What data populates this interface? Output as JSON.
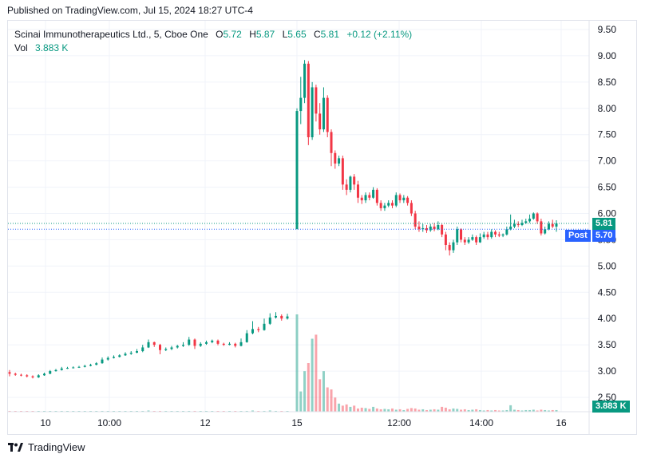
{
  "header": {
    "published": "Published on TradingView.com, Jul 15, 2024 18:27 UTC-4"
  },
  "legend": {
    "symbol": "Scinai Immunotherapeutics Ltd., 5, Cboe One",
    "o_label": "O",
    "o_value": "5.72",
    "h_label": "H",
    "h_value": "5.87",
    "l_label": "L",
    "l_value": "5.65",
    "c_label": "C",
    "c_value": "5.81",
    "change": "+0.12 (+2.11%)",
    "vol_label": "Vol",
    "vol_value": "3.883 K"
  },
  "tags": {
    "last_price": "5.81",
    "post_label": "Post",
    "post_price": "5.70",
    "volume": "3.883 K"
  },
  "footer": {
    "brand": "TradingView"
  },
  "colors": {
    "up": "#089981",
    "down": "#f23645",
    "post": "#2962ff",
    "grid": "#f0f3fa"
  },
  "chart_data": {
    "type": "candlestick",
    "y_axis": {
      "min": 2.5,
      "max": 9.5,
      "ticks": [
        "9.50",
        "9.00",
        "8.50",
        "8.00",
        "7.50",
        "7.00",
        "6.50",
        "6.00",
        "5.50",
        "5.00",
        "4.50",
        "4.00",
        "3.50",
        "3.00",
        "2.50"
      ]
    },
    "x_axis": {
      "ticks": [
        "10",
        "10:00",
        "12",
        "15",
        "12:00",
        "14:00",
        "16"
      ]
    },
    "last_price": 5.81,
    "post_price": 5.7,
    "candles": [
      [
        2.98,
        2.95,
        3.02,
        2.9
      ],
      [
        2.95,
        2.93,
        2.97,
        2.91
      ],
      [
        2.93,
        2.92,
        2.95,
        2.9
      ],
      [
        2.92,
        2.9,
        2.94,
        2.88
      ],
      [
        2.9,
        2.88,
        2.92,
        2.86
      ],
      [
        2.88,
        2.92,
        2.94,
        2.87
      ],
      [
        2.92,
        2.95,
        2.97,
        2.91
      ],
      [
        2.95,
        3.0,
        3.02,
        2.94
      ],
      [
        3.0,
        3.02,
        3.04,
        2.99
      ],
      [
        3.02,
        3.05,
        3.08,
        3.01
      ],
      [
        3.05,
        3.06,
        3.08,
        3.04
      ],
      [
        3.06,
        3.07,
        3.09,
        3.05
      ],
      [
        3.07,
        3.08,
        3.1,
        3.06
      ],
      [
        3.08,
        3.1,
        3.12,
        3.07
      ],
      [
        3.1,
        3.12,
        3.14,
        3.09
      ],
      [
        3.12,
        3.15,
        3.17,
        3.11
      ],
      [
        3.15,
        3.22,
        3.26,
        3.14
      ],
      [
        3.22,
        3.25,
        3.28,
        3.2
      ],
      [
        3.25,
        3.27,
        3.3,
        3.24
      ],
      [
        3.27,
        3.3,
        3.32,
        3.26
      ],
      [
        3.3,
        3.33,
        3.36,
        3.29
      ],
      [
        3.33,
        3.35,
        3.38,
        3.31
      ],
      [
        3.35,
        3.38,
        3.42,
        3.34
      ],
      [
        3.38,
        3.45,
        3.5,
        3.36
      ],
      [
        3.45,
        3.55,
        3.6,
        3.44
      ],
      [
        3.55,
        3.5,
        3.56,
        3.46
      ],
      [
        3.5,
        3.4,
        3.52,
        3.32
      ],
      [
        3.4,
        3.42,
        3.45,
        3.38
      ],
      [
        3.42,
        3.45,
        3.48,
        3.4
      ],
      [
        3.45,
        3.48,
        3.5,
        3.43
      ],
      [
        3.48,
        3.5,
        3.55,
        3.46
      ],
      [
        3.5,
        3.6,
        3.65,
        3.48
      ],
      [
        3.6,
        3.48,
        3.62,
        3.42
      ],
      [
        3.48,
        3.52,
        3.55,
        3.46
      ],
      [
        3.52,
        3.55,
        3.58,
        3.5
      ],
      [
        3.55,
        3.58,
        3.6,
        3.53
      ],
      [
        3.58,
        3.52,
        3.6,
        3.49
      ],
      [
        3.52,
        3.5,
        3.54,
        3.48
      ],
      [
        3.5,
        3.52,
        3.55,
        3.49
      ],
      [
        3.52,
        3.48,
        3.54,
        3.45
      ],
      [
        3.48,
        3.55,
        3.62,
        3.47
      ],
      [
        3.55,
        3.72,
        3.78,
        3.54
      ],
      [
        3.72,
        3.8,
        3.95,
        3.7
      ],
      [
        3.8,
        3.78,
        3.84,
        3.74
      ],
      [
        3.78,
        3.9,
        4.0,
        3.77
      ],
      [
        3.9,
        4.02,
        4.1,
        3.88
      ],
      [
        4.02,
        4.05,
        4.12,
        4.0
      ],
      [
        4.05,
        4.0,
        4.08,
        3.96
      ],
      [
        4.0,
        4.04,
        4.09,
        3.98
      ],
      [
        5.7,
        7.95,
        8.0,
        6.45
      ],
      [
        7.95,
        8.2,
        8.6,
        7.7
      ],
      [
        8.2,
        8.85,
        8.92,
        8.1
      ],
      [
        8.85,
        7.45,
        8.9,
        7.3
      ],
      [
        7.45,
        8.4,
        8.5,
        7.4
      ],
      [
        8.4,
        7.9,
        8.45,
        7.75
      ],
      [
        7.9,
        7.6,
        8.1,
        7.5
      ],
      [
        7.6,
        8.2,
        8.4,
        7.55
      ],
      [
        8.2,
        7.55,
        8.25,
        7.45
      ],
      [
        7.55,
        7.15,
        7.6,
        6.9
      ],
      [
        7.15,
        6.95,
        7.2,
        6.85
      ],
      [
        6.95,
        7.05,
        7.1,
        6.9
      ],
      [
        7.05,
        6.55,
        7.1,
        6.45
      ],
      [
        6.55,
        6.45,
        6.65,
        6.35
      ],
      [
        6.45,
        6.7,
        6.72,
        6.4
      ],
      [
        6.7,
        6.55,
        6.75,
        6.45
      ],
      [
        6.55,
        6.3,
        6.62,
        6.2
      ],
      [
        6.3,
        6.25,
        6.35,
        6.18
      ],
      [
        6.25,
        6.35,
        6.4,
        6.2
      ],
      [
        6.35,
        6.3,
        6.4,
        6.25
      ],
      [
        6.3,
        6.45,
        6.5,
        6.28
      ],
      [
        6.45,
        6.2,
        6.48,
        6.15
      ],
      [
        6.2,
        6.1,
        6.25,
        6.05
      ],
      [
        6.1,
        6.15,
        6.2,
        6.05
      ],
      [
        6.15,
        6.2,
        6.25,
        6.12
      ],
      [
        6.2,
        6.15,
        6.25,
        6.1
      ],
      [
        6.15,
        6.35,
        6.4,
        6.12
      ],
      [
        6.35,
        6.25,
        6.38,
        6.2
      ],
      [
        6.25,
        6.3,
        6.35,
        6.2
      ],
      [
        6.3,
        6.2,
        6.33,
        6.15
      ],
      [
        6.2,
        6.0,
        6.25,
        5.95
      ],
      [
        6.0,
        5.75,
        6.05,
        5.7
      ],
      [
        5.75,
        5.7,
        5.85,
        5.65
      ],
      [
        5.7,
        5.72,
        5.8,
        5.65
      ],
      [
        5.72,
        5.68,
        5.78,
        5.63
      ],
      [
        5.68,
        5.75,
        5.8,
        5.65
      ],
      [
        5.75,
        5.7,
        5.82,
        5.66
      ],
      [
        5.7,
        5.78,
        5.85,
        5.68
      ],
      [
        5.78,
        5.6,
        5.8,
        5.55
      ],
      [
        5.6,
        5.4,
        5.65,
        5.3
      ],
      [
        5.4,
        5.3,
        5.45,
        5.2
      ],
      [
        5.3,
        5.45,
        5.5,
        5.25
      ],
      [
        5.45,
        5.7,
        5.75,
        5.4
      ],
      [
        5.7,
        5.5,
        5.72,
        5.45
      ],
      [
        5.5,
        5.45,
        5.55,
        5.4
      ],
      [
        5.45,
        5.5,
        5.55,
        5.42
      ],
      [
        5.5,
        5.55,
        5.6,
        5.48
      ],
      [
        5.55,
        5.45,
        5.58,
        5.4
      ],
      [
        5.45,
        5.55,
        5.62,
        5.44
      ],
      [
        5.55,
        5.6,
        5.65,
        5.52
      ],
      [
        5.6,
        5.55,
        5.65,
        5.5
      ],
      [
        5.55,
        5.65,
        5.7,
        5.52
      ],
      [
        5.65,
        5.6,
        5.68,
        5.55
      ],
      [
        5.6,
        5.58,
        5.65,
        5.55
      ],
      [
        5.58,
        5.6,
        5.62,
        5.55
      ],
      [
        5.6,
        5.7,
        5.75,
        5.58
      ],
      [
        5.7,
        5.75,
        5.98,
        5.68
      ],
      [
        5.75,
        5.8,
        5.88,
        5.72
      ],
      [
        5.8,
        5.78,
        5.85,
        5.74
      ],
      [
        5.78,
        5.82,
        5.88,
        5.76
      ],
      [
        5.82,
        5.85,
        5.9,
        5.8
      ],
      [
        5.85,
        5.9,
        5.98,
        5.82
      ],
      [
        5.9,
        6.0,
        6.02,
        5.88
      ],
      [
        6.0,
        5.85,
        6.02,
        5.8
      ],
      [
        5.85,
        5.62,
        5.9,
        5.58
      ],
      [
        5.62,
        5.7,
        5.75,
        5.6
      ],
      [
        5.7,
        5.8,
        5.85,
        5.68
      ],
      [
        5.8,
        5.75,
        5.88,
        5.72
      ],
      [
        5.75,
        5.81,
        5.87,
        5.65
      ]
    ],
    "volumes": [
      0.2,
      0.1,
      0.1,
      0.1,
      0.1,
      0.1,
      0.1,
      0.1,
      0.1,
      0.2,
      0.1,
      0.1,
      0.1,
      0.1,
      0.1,
      0.1,
      0.2,
      0.1,
      0.1,
      0.1,
      0.1,
      0.1,
      0.1,
      0.2,
      0.3,
      0.1,
      0.2,
      0.1,
      0.1,
      0.1,
      0.1,
      0.2,
      0.2,
      0.1,
      0.1,
      0.1,
      0.1,
      0.1,
      0.1,
      0.1,
      0.1,
      0.2,
      0.3,
      0.1,
      0.2,
      0.3,
      0.2,
      0.1,
      0.1,
      24.0,
      5.0,
      10.0,
      12.0,
      18.0,
      19.0,
      8.0,
      10.0,
      6.0,
      5.5,
      3.5,
      2.0,
      1.5,
      1.8,
      1.2,
      1.5,
      0.8,
      1.0,
      0.9,
      0.7,
      1.2,
      0.8,
      0.6,
      0.7,
      0.6,
      0.8,
      0.5,
      0.6,
      0.4,
      0.7,
      0.9,
      0.8,
      0.5,
      0.6,
      0.4,
      0.5,
      0.6,
      0.5,
      1.2,
      1.0,
      0.6,
      0.8,
      0.7,
      0.5,
      0.6,
      0.4,
      0.5,
      0.6,
      0.4,
      0.3,
      0.4,
      0.3,
      0.4,
      0.3,
      0.3,
      0.4,
      1.6,
      0.5,
      0.4,
      0.3,
      0.4,
      0.4,
      0.5,
      0.3,
      0.5,
      0.4,
      0.3,
      0.4,
      0.4
    ]
  }
}
